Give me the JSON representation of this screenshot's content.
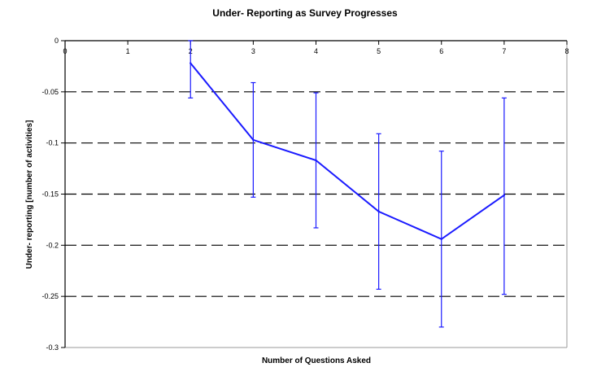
{
  "chart_data": {
    "type": "line",
    "title": "Under- Reporting as Survey Progresses",
    "xlabel": "Number of Questions Asked",
    "ylabel": "Under- reporting [number of activities]",
    "xlim": [
      0,
      8
    ],
    "ylim": [
      -0.3,
      0
    ],
    "x_ticks": [
      0,
      1,
      2,
      3,
      4,
      5,
      6,
      7,
      8
    ],
    "y_ticks": [
      0,
      -0.05,
      -0.1,
      -0.15,
      -0.2,
      -0.25,
      -0.3
    ],
    "x_tick_labels": [
      "0",
      "1",
      "2",
      "3",
      "4",
      "5",
      "6",
      "7",
      "8"
    ],
    "y_tick_labels": [
      "0",
      "-0.05",
      "-0.1",
      "-0.15",
      "-0.2",
      "-0.25",
      "-0.3"
    ],
    "grid": "horizontal dashed",
    "series": [
      {
        "color": "#1a1aff",
        "x": [
          2,
          3,
          4,
          5,
          6,
          7
        ],
        "y": [
          -0.022,
          -0.097,
          -0.117,
          -0.167,
          -0.194,
          -0.151
        ],
        "error_low": [
          -0.056,
          -0.153,
          -0.183,
          -0.243,
          -0.28,
          -0.248
        ],
        "error_high": [
          0.0,
          -0.041,
          -0.051,
          -0.091,
          -0.108,
          -0.056
        ]
      }
    ]
  }
}
